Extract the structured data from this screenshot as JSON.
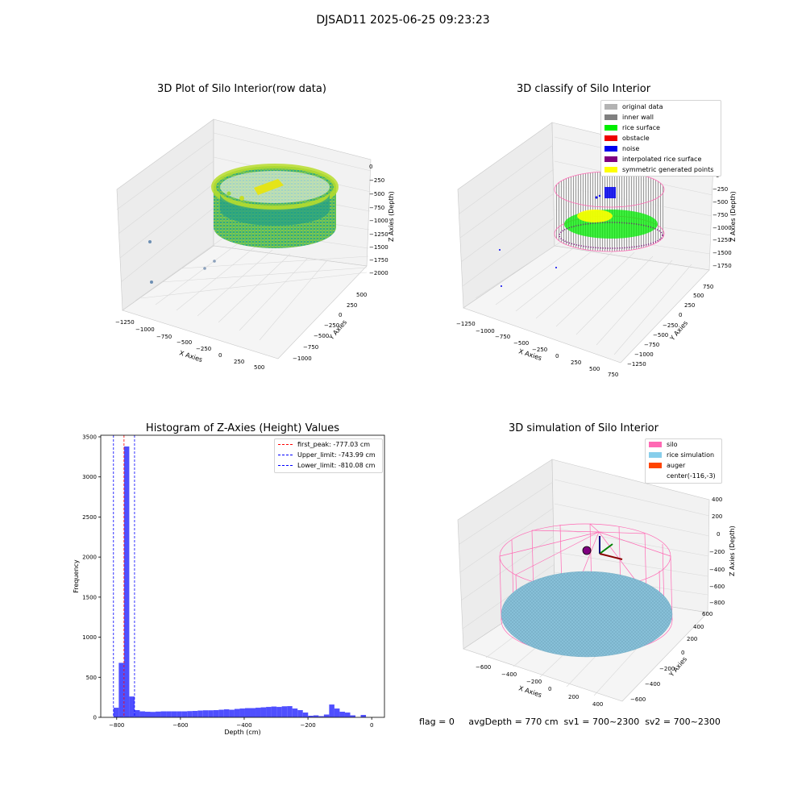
{
  "suptitle": "DJSAD11 2025-06-25 09:23:23",
  "panels": {
    "raw": {
      "title": "3D Plot of Silo Interior(row data)",
      "xlabel": "X Axies",
      "ylabel": "Y Axies",
      "zlabel": "Z Axies (Depth)",
      "xticks": [
        "−1250",
        "−1000",
        "−750",
        "−500",
        "−250",
        "0",
        "250",
        "500"
      ],
      "yticks": [
        "−1000",
        "−750",
        "−500",
        "−250",
        "0",
        "250",
        "500"
      ],
      "zticks": [
        "0",
        "−250",
        "−500",
        "−750",
        "−1000",
        "−1250",
        "−1500",
        "−1750",
        "−2000"
      ]
    },
    "classify": {
      "title": "3D classify of Silo Interior",
      "xlabel": "X Axies",
      "ylabel": "Y Axies",
      "zlabel": "Z Axies (Depth)",
      "xticks": [
        "−1250",
        "−1000",
        "−750",
        "−500",
        "−250",
        "0",
        "250",
        "500",
        "750"
      ],
      "yticks": [
        "−1250",
        "−1000",
        "−750",
        "−500",
        "−250",
        "0",
        "250",
        "500",
        "750"
      ],
      "zticks": [
        "0",
        "−250",
        "−500",
        "−750",
        "−1000",
        "−1250",
        "−1500",
        "−1750"
      ],
      "legend": [
        {
          "label": "original data",
          "color": "#b3b3b3"
        },
        {
          "label": "inner wall",
          "color": "#808080"
        },
        {
          "label": "rice surface",
          "color": "#00ee00"
        },
        {
          "label": "obstacle",
          "color": "#ee0000"
        },
        {
          "label": "noise",
          "color": "#0000ee"
        },
        {
          "label": "interpolated rice surface",
          "color": "#800080"
        },
        {
          "label": "symmetric generated points",
          "color": "#ffff00"
        }
      ]
    },
    "simulation": {
      "title": "3D simulation of Silo Interior",
      "xlabel": "X Axies",
      "ylabel": "Y Axies",
      "zlabel": "Z Axies (Depth)",
      "xticks": [
        "−600",
        "−400",
        "−200",
        "0",
        "200",
        "400"
      ],
      "yticks": [
        "−600",
        "−400",
        "−200",
        "0",
        "200",
        "400",
        "600"
      ],
      "zticks": [
        "400",
        "200",
        "0",
        "−200",
        "−400",
        "−600",
        "−800"
      ],
      "legend": [
        {
          "label": "silo",
          "color": "#ff69b4"
        },
        {
          "label": "rice simulation",
          "color": "#87ceeb"
        },
        {
          "label": "auger",
          "color": "#ff4500"
        },
        {
          "label": "center(-116,-3)",
          "color": ""
        }
      ]
    }
  },
  "status_text": "flag = 0     avgDepth = 770 cm  sv1 = 700~2300  sv2 = 700~2300",
  "chart_data": {
    "type": "bar",
    "title": "Histogram of Z-Axies (Height) Values",
    "xlabel": "Depth (cm)",
    "ylabel": "Frequency",
    "xlim": [
      -850,
      40
    ],
    "ylim": [
      0,
      3520
    ],
    "xticks": [
      -800,
      -600,
      -400,
      -200,
      0
    ],
    "xtick_labels": [
      "−800",
      "−600",
      "−400",
      "−200",
      "0"
    ],
    "yticks": [
      0,
      500,
      1000,
      1500,
      2000,
      2500,
      3000,
      3500
    ],
    "bin_width": 16.5,
    "bins": [
      {
        "x0": -810,
        "v": 120
      },
      {
        "x0": -793.5,
        "v": 680
      },
      {
        "x0": -777,
        "v": 3380
      },
      {
        "x0": -760.5,
        "v": 260
      },
      {
        "x0": -744,
        "v": 90
      },
      {
        "x0": -727.5,
        "v": 75
      },
      {
        "x0": -711,
        "v": 70
      },
      {
        "x0": -694.5,
        "v": 68
      },
      {
        "x0": -678,
        "v": 72
      },
      {
        "x0": -661.5,
        "v": 75
      },
      {
        "x0": -645,
        "v": 75
      },
      {
        "x0": -628.5,
        "v": 75
      },
      {
        "x0": -612,
        "v": 75
      },
      {
        "x0": -595.5,
        "v": 75
      },
      {
        "x0": -579,
        "v": 78
      },
      {
        "x0": -562.5,
        "v": 80
      },
      {
        "x0": -546,
        "v": 85
      },
      {
        "x0": -529.5,
        "v": 88
      },
      {
        "x0": -513,
        "v": 88
      },
      {
        "x0": -496.5,
        "v": 90
      },
      {
        "x0": -480,
        "v": 95
      },
      {
        "x0": -463.5,
        "v": 100
      },
      {
        "x0": -447,
        "v": 95
      },
      {
        "x0": -430.5,
        "v": 105
      },
      {
        "x0": -414,
        "v": 110
      },
      {
        "x0": -397.5,
        "v": 115
      },
      {
        "x0": -381,
        "v": 115
      },
      {
        "x0": -364.5,
        "v": 120
      },
      {
        "x0": -348,
        "v": 125
      },
      {
        "x0": -331.5,
        "v": 130
      },
      {
        "x0": -315,
        "v": 135
      },
      {
        "x0": -298.5,
        "v": 130
      },
      {
        "x0": -282,
        "v": 138
      },
      {
        "x0": -265.5,
        "v": 140
      },
      {
        "x0": -249,
        "v": 110
      },
      {
        "x0": -232.5,
        "v": 90
      },
      {
        "x0": -216,
        "v": 60
      },
      {
        "x0": -199.5,
        "v": 20
      },
      {
        "x0": -183,
        "v": 25
      },
      {
        "x0": -166.5,
        "v": 15
      },
      {
        "x0": -150,
        "v": 35
      },
      {
        "x0": -133.5,
        "v": 160
      },
      {
        "x0": -117,
        "v": 110
      },
      {
        "x0": -100.5,
        "v": 70
      },
      {
        "x0": -84,
        "v": 60
      },
      {
        "x0": -67.5,
        "v": 25
      },
      {
        "x0": -51,
        "v": 0
      },
      {
        "x0": -34.5,
        "v": 30
      },
      {
        "x0": -18,
        "v": 0
      }
    ],
    "vlines": [
      {
        "x": -777.03,
        "label": "first_peak: -777.03 cm",
        "color": "#ff0000"
      },
      {
        "x": -743.99,
        "label": "Upper_limit: -743.99 cm",
        "color": "#0000ff"
      },
      {
        "x": -810.08,
        "label": "Lower_limit: -810.08 cm",
        "color": "#0000ff"
      }
    ],
    "bar_color": "#4646ff",
    "legend_position": "upper right"
  }
}
